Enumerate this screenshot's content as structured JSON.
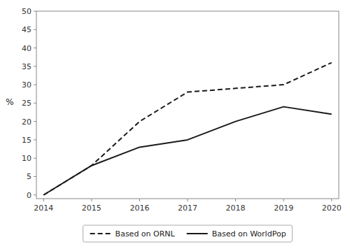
{
  "chart_data": {
    "type": "line",
    "ylabel": "%",
    "x": [
      2014,
      2015,
      2016,
      2017,
      2018,
      2019,
      2020
    ],
    "series": [
      {
        "name": "Based on ORNL",
        "color": "#1a1a1a",
        "line_style": "dashed",
        "values": [
          0,
          8,
          20,
          28,
          29,
          30,
          36
        ]
      },
      {
        "name": "Based on WorldPop",
        "color": "#1a1a1a",
        "line_style": "solid",
        "values": [
          0,
          8,
          13,
          15,
          20,
          24,
          22
        ]
      }
    ],
    "xlim": [
      2013.85,
      2020.15
    ],
    "xticks": [
      2014,
      2015,
      2016,
      2017,
      2018,
      2019,
      2020
    ],
    "ylim": [
      -1,
      50
    ],
    "yticks": [
      0,
      5,
      10,
      15,
      20,
      25,
      30,
      35,
      40,
      45,
      50
    ],
    "grid": false,
    "legend": "bottom"
  }
}
